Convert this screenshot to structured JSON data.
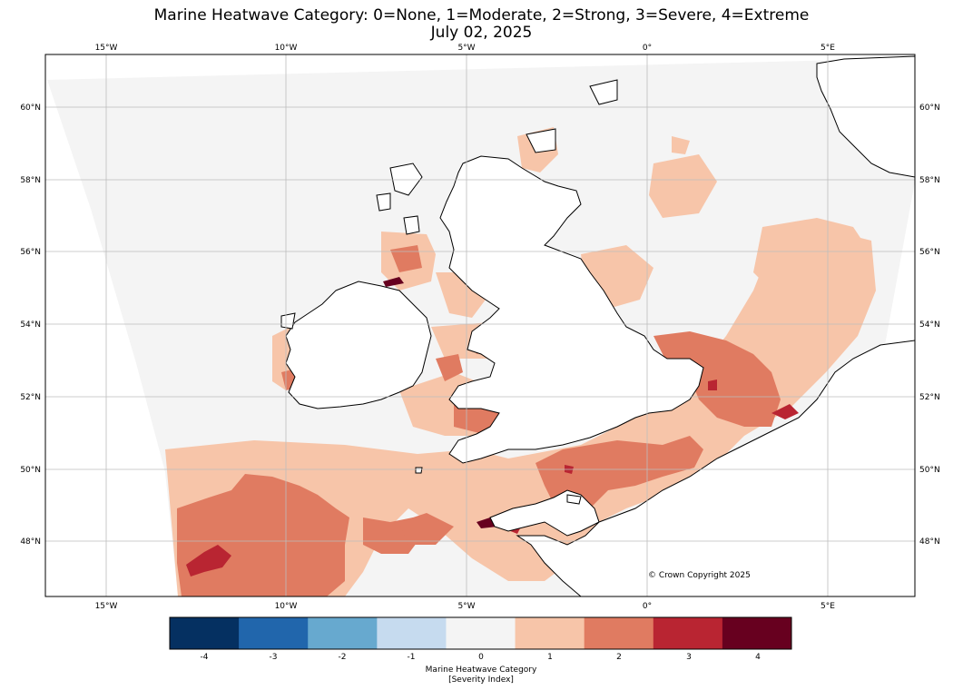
{
  "title": {
    "line1": "Marine Heatwave Category: 0=None, 1=Moderate, 2=Strong, 3=Severe, 4=Extreme",
    "line2": "July 02, 2025"
  },
  "map": {
    "lon_range": [
      -16.7,
      7.4
    ],
    "lat_range": [
      46.4,
      61.4
    ],
    "lon_ticks": [
      "15°W",
      "10°W",
      "5°W",
      "0°",
      "5°E"
    ],
    "lat_ticks": [
      "60°N",
      "58°N",
      "56°N",
      "54°N",
      "52°N",
      "50°N",
      "48°N"
    ],
    "copyright": "© Crown Copyright 2025"
  },
  "colorbar": {
    "ticks": [
      "-4",
      "-3",
      "-2",
      "-1",
      "0",
      "1",
      "2",
      "3",
      "4"
    ],
    "colors": [
      "#053061",
      "#2166ac",
      "#67a9cf",
      "#c6dbef",
      "#f4f4f4",
      "#f7c5a9",
      "#e07b61",
      "#b92532",
      "#67001f"
    ],
    "label_line1": "Marine Heatwave Category",
    "label_line2": "[Severity Index]"
  }
}
